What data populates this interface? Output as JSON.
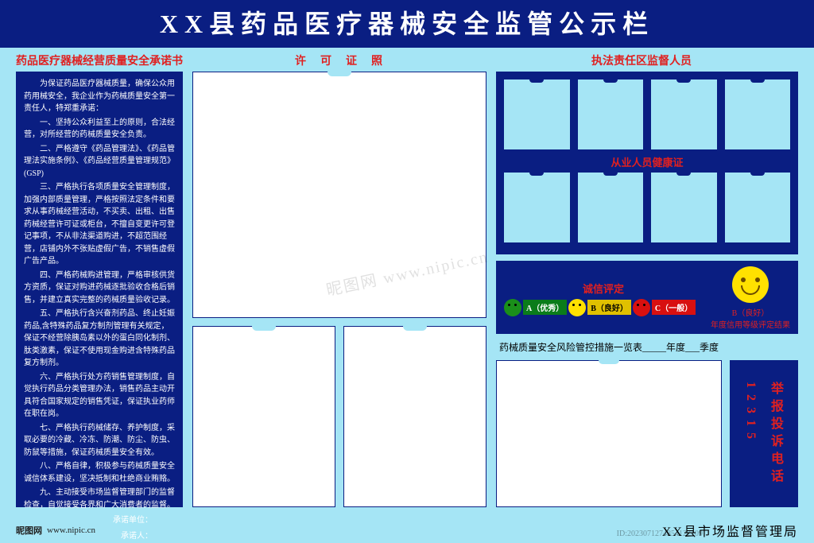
{
  "header": {
    "title": "XX县药品医疗器械安全监管公示栏"
  },
  "section_titles": {
    "commitment": "药品医疗器械经营质量安全承诺书",
    "license": "许可证照",
    "staff": "执法责任区监督人员"
  },
  "commitment": {
    "intro": "为保证药品医疗器械质量，确保公众用药用械安全，我企业作为药械质量安全第一责任人，特郑重承诺：",
    "items": [
      "一、坚持公众利益至上的原则，合法经营，对所经营的药械质量安全负责。",
      "二、严格遵守《药品管理法》、《药品管理法实施条例》、《药品经营质量管理规范》(GSP)",
      "三、严格执行各项质量安全管理制度，加强内部质量管理，严格按照法定条件和要求从事药械经营活动，不买卖、出租、出售药械经营许可证或柜台，不擅自变更许可登记事项，不从非法渠道购进，不超范围经营，店铺内外不张贴虚假广告，不销售虚假广告产品。",
      "四、严格药械购进管理，严格审核供货方资质，保证对购进药械逐批验收合格后销售，并建立真实完整的药械质量验收记录。",
      "五、严格执行含兴奋剂药品、终止妊娠药品,含特殊药品复方制剂管理有关规定，保证不经营除胰岛素以外的蛋白同化制剂、肽类激素，保证不使用现金购进含特殊药品复方制剂。",
      "六、严格执行处方药销售管理制度，自觉执行药品分类管理办法，销售药品主动开具符合国家规定的销售凭证，保证执业药师在职在岗。",
      "七、严格执行药械储存、养护制度，采取必要的冷藏、冷冻、防潮、防尘、防虫、防鼠等措施，保证药械质量安全有效。",
      "八、严格自律，积极参与药械质量安全诚信体系建设，坚决抵制和杜绝商业贿赂。",
      "九、主动接受市场监督管理部门的监督检查，自觉接受各界和广大消费者的监督。"
    ],
    "sig1": "承诺单位：",
    "sig2": "承诺人："
  },
  "staff_box": {
    "health_cert": "从业人员健康证"
  },
  "rating": {
    "title": "诚信评定",
    "a": "A（优秀）",
    "b": "B（良好）",
    "c": "C（一般）",
    "result_level": "B（良好）",
    "result_caption": "年度信用等级评定结果"
  },
  "risk": {
    "title": "药械质量安全风险管控措施一览表_____年度___季度"
  },
  "hotline": {
    "label": "举报投诉电话",
    "number": "12315"
  },
  "footer": {
    "left_brand": "昵图网",
    "left_url": "www.nipic.cn",
    "right": "XX县市场监督管理局",
    "wm_center": "昵图网  www.nipic.cn",
    "wm_id": "ID:2023071274854122109"
  },
  "colors": {
    "bg": "#a5e5f5",
    "navy": "#0a1e82",
    "red": "#e02020"
  }
}
